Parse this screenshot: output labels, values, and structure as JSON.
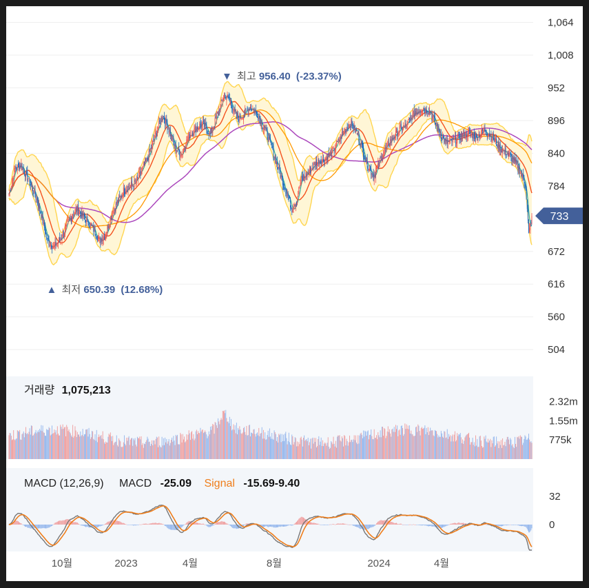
{
  "chart_data": [
    {
      "type": "candlestick",
      "panel": "price",
      "y_ticks": [
        "1,064",
        "1,008",
        "952",
        "896",
        "840",
        "784",
        "672",
        "616",
        "560",
        "504"
      ],
      "y_tick_values": [
        1064,
        1008,
        952,
        896,
        840,
        784,
        672,
        616,
        560,
        504
      ],
      "ylim": [
        490,
        1080
      ],
      "x_ticks": [
        "10월",
        "2023",
        "4월",
        "8월",
        "2024",
        "4월"
      ],
      "current_price_label": "733",
      "current_price": 733,
      "high_marker": {
        "arrow": "▼",
        "label": "최고",
        "value": "956.40",
        "change": "(-23.37%)",
        "price": 956.4
      },
      "low_marker": {
        "arrow": "▲",
        "label": "최저",
        "value": "650.39",
        "change": "(12.68%)",
        "price": 650.39
      },
      "close_anchors": [
        [
          0,
          770
        ],
        [
          8,
          815
        ],
        [
          16,
          820
        ],
        [
          25,
          795
        ],
        [
          34,
          770
        ],
        [
          42,
          735
        ],
        [
          50,
          690
        ],
        [
          58,
          680
        ],
        [
          68,
          695
        ],
        [
          78,
          725
        ],
        [
          88,
          745
        ],
        [
          98,
          730
        ],
        [
          110,
          710
        ],
        [
          118,
          690
        ],
        [
          125,
          700
        ],
        [
          135,
          740
        ],
        [
          150,
          778
        ],
        [
          165,
          790
        ],
        [
          180,
          830
        ],
        [
          192,
          878
        ],
        [
          200,
          906
        ],
        [
          208,
          880
        ],
        [
          216,
          850
        ],
        [
          224,
          838
        ],
        [
          234,
          870
        ],
        [
          244,
          884
        ],
        [
          252,
          890
        ],
        [
          262,
          872
        ],
        [
          272,
          910
        ],
        [
          280,
          940
        ],
        [
          288,
          930
        ],
        [
          296,
          900
        ],
        [
          304,
          905
        ],
        [
          314,
          920
        ],
        [
          324,
          905
        ],
        [
          334,
          878
        ],
        [
          344,
          840
        ],
        [
          354,
          800
        ],
        [
          362,
          770
        ],
        [
          368,
          745
        ],
        [
          374,
          760
        ],
        [
          380,
          795
        ],
        [
          390,
          808
        ],
        [
          400,
          825
        ],
        [
          412,
          832
        ],
        [
          422,
          845
        ],
        [
          434,
          875
        ],
        [
          444,
          892
        ],
        [
          454,
          872
        ],
        [
          464,
          828
        ],
        [
          474,
          800
        ],
        [
          484,
          832
        ],
        [
          496,
          862
        ],
        [
          508,
          880
        ],
        [
          518,
          890
        ],
        [
          528,
          910
        ],
        [
          538,
          918
        ],
        [
          548,
          912
        ],
        [
          558,
          880
        ],
        [
          568,
          858
        ],
        [
          578,
          862
        ],
        [
          588,
          870
        ],
        [
          598,
          875
        ],
        [
          608,
          868
        ],
        [
          618,
          880
        ],
        [
          628,
          868
        ],
        [
          638,
          850
        ],
        [
          648,
          840
        ],
        [
          656,
          828
        ],
        [
          664,
          812
        ],
        [
          668,
          798
        ],
        [
          672,
          785
        ],
        [
          676,
          700
        ],
        [
          680,
          733
        ]
      ],
      "volume_header": {
        "label": "거래량",
        "value": "1,075,213"
      },
      "volume_ticks": [
        "2.32m",
        "1.55m",
        "775k"
      ],
      "volume_tick_values": [
        2320000,
        1550000,
        775000
      ],
      "macd_header": {
        "label": "MACD (12,26,9)",
        "macd_label": "MACD",
        "macd_value": "-25.09",
        "signal_label": "Signal",
        "signal_value": "-15.69",
        "hist_value": "-9.40"
      },
      "macd_ticks": [
        "32",
        "0"
      ],
      "macd_tick_values": [
        32,
        0
      ]
    }
  ],
  "colors": {
    "up": "#ef5350",
    "down": "#1565c0",
    "ma5": "#26a69a",
    "ma20": "#f4511e",
    "ma60": "#ff9800",
    "ma120": "#ab47bc",
    "band_fill": "#fff6d6",
    "band_line": "#ffd54f",
    "vol_up": "#ef9a9a",
    "vol_down": "#90b4ec",
    "macd_line": "#777777",
    "signal_line": "#ef7d1a",
    "price_tag": "#43609a",
    "panel_bg": "#f3f6fa"
  }
}
